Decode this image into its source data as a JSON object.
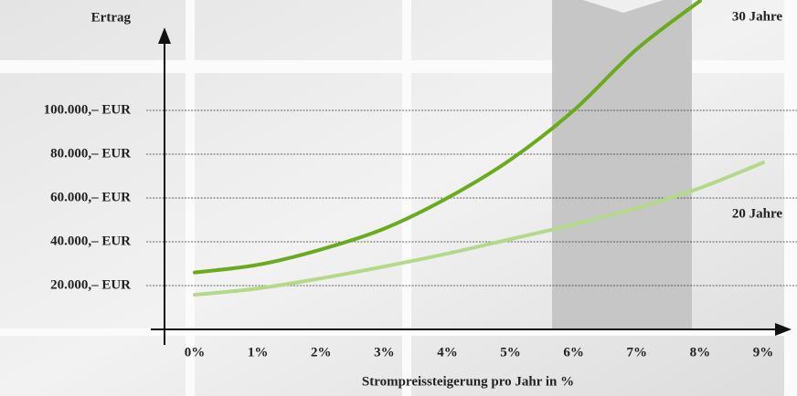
{
  "chart_data": {
    "type": "line",
    "y_label": "Ertrag",
    "x_label": "Strompreissteigerung pro Jahr in %",
    "x": [
      0,
      1,
      2,
      3,
      4,
      5,
      6,
      7,
      8,
      9
    ],
    "series": [
      {
        "name": "30 Jahre",
        "color": "#6aaa1e",
        "values": [
          26000,
          29500,
          36500,
          46000,
          60000,
          77500,
          100000,
          128000,
          150000,
          null
        ]
      },
      {
        "name": "20 Jahre",
        "color": "#b5d98a",
        "values": [
          15800,
          18700,
          23300,
          28700,
          34600,
          41200,
          47900,
          55400,
          64600,
          76200
        ]
      }
    ],
    "xlim": [
      0,
      9
    ],
    "xticks": [
      {
        "value": 0,
        "label": "0%"
      },
      {
        "value": 1,
        "label": "1%"
      },
      {
        "value": 2,
        "label": "2%"
      },
      {
        "value": 3,
        "label": "3%"
      },
      {
        "value": 4,
        "label": "4%"
      },
      {
        "value": 5,
        "label": "5%"
      },
      {
        "value": 6,
        "label": "6%"
      },
      {
        "value": 7,
        "label": "7%"
      },
      {
        "value": 8,
        "label": "8%"
      },
      {
        "value": 9,
        "label": "9%"
      }
    ],
    "ylim": [
      0,
      150000
    ],
    "yticks": [
      {
        "value": 20000,
        "label": "20.000,– EUR"
      },
      {
        "value": 40000,
        "label": "40.000,– EUR"
      },
      {
        "value": 60000,
        "label": "60.000,– EUR"
      },
      {
        "value": 80000,
        "label": "80.000,– EUR"
      },
      {
        "value": 100000,
        "label": "100.000,– EUR"
      }
    ],
    "grid": true
  }
}
